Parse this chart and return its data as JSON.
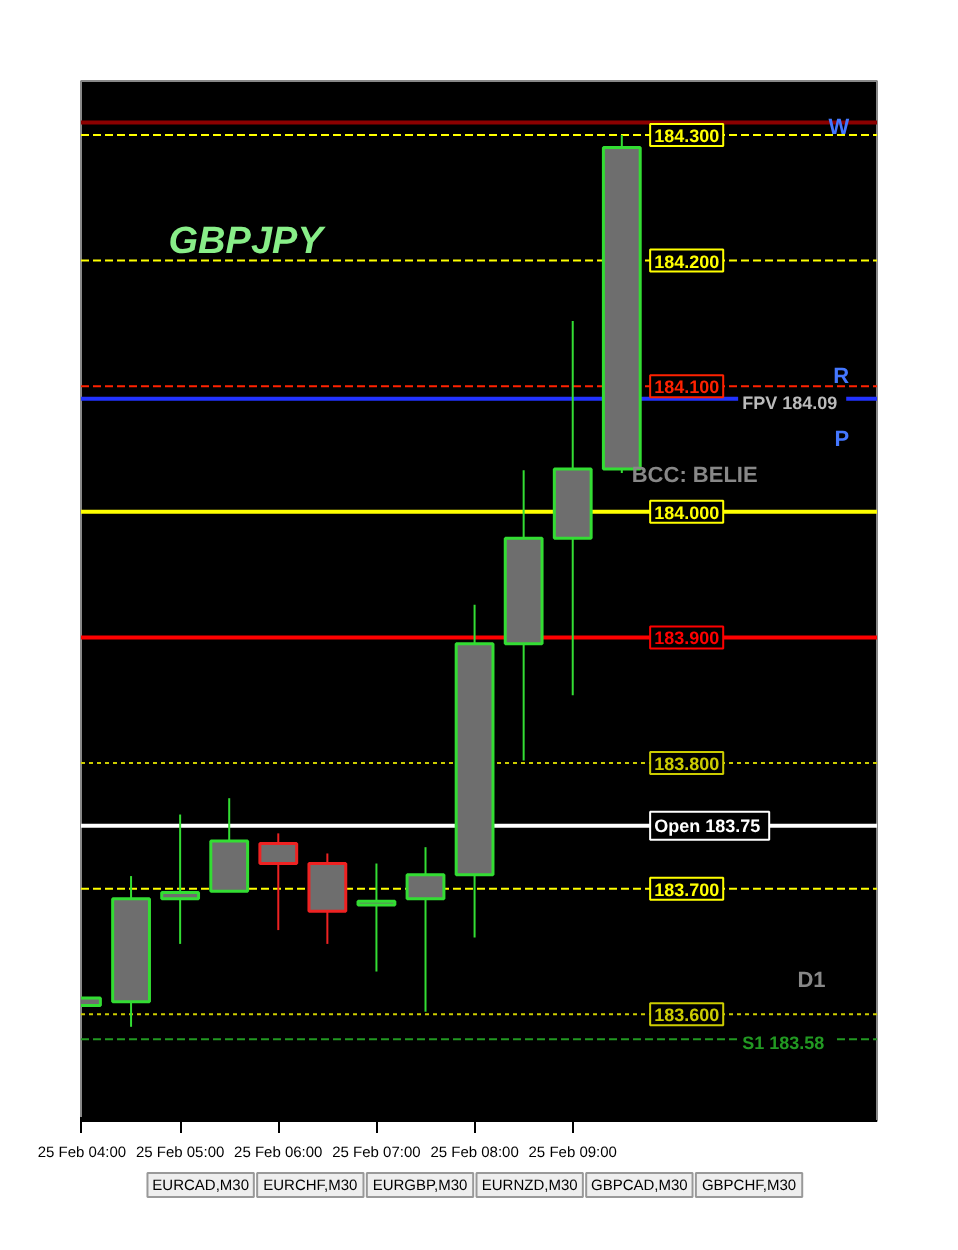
{
  "chart_data": {
    "type": "candlestick",
    "title": "GBPJPY",
    "categories": [
      "25 Feb 04:00",
      null,
      "25 Feb 05:00",
      null,
      "25 Feb 06:00",
      null,
      "25 Feb 07:00",
      null,
      "25 Feb 08:00",
      null,
      "25 Feb 09:00",
      null
    ],
    "ohlc": [
      [
        183.607,
        183.613,
        183.607,
        183.613
      ],
      [
        183.61,
        183.71,
        183.59,
        183.692
      ],
      [
        183.692,
        183.759,
        183.656,
        183.697
      ],
      [
        183.698,
        183.772,
        183.698,
        183.738
      ],
      [
        183.736,
        183.744,
        183.667,
        183.72
      ],
      [
        183.72,
        183.728,
        183.656,
        183.682
      ],
      [
        183.687,
        183.72,
        183.634,
        183.69
      ],
      [
        183.692,
        183.733,
        183.602,
        183.711
      ],
      [
        183.711,
        183.926,
        183.661,
        183.895
      ],
      [
        183.895,
        184.033,
        183.802,
        183.979
      ],
      [
        183.979,
        184.152,
        183.854,
        184.034
      ],
      [
        184.034,
        184.3,
        184.031,
        184.29
      ]
    ],
    "colors": [
      "#33dd33",
      "#33dd33",
      "#33dd33",
      "#33dd33",
      "#ee2222",
      "#ee2222",
      "#33dd33",
      "#33dd33",
      "#33dd33",
      "#33dd33",
      "#33dd33",
      "#33dd33"
    ],
    "ylim": [
      183.515,
      184.343
    ],
    "tick_labels": "x",
    "grid": false,
    "ref_lines": [
      {
        "axis": "y",
        "value": 184.31,
        "color": "#8b0000",
        "line_style": "solid"
      },
      {
        "axis": "y",
        "value": 184.3,
        "label": "184.300",
        "color": "#ffff00",
        "line_style": "dashed"
      },
      {
        "axis": "y",
        "value": 184.2,
        "label": "184.200",
        "color": "#ffff00",
        "line_style": "dashed"
      },
      {
        "axis": "y",
        "value": 184.1,
        "label": "184.100",
        "color": "#ff2200",
        "line_style": "dashed"
      },
      {
        "axis": "y",
        "value": 184.09,
        "label": "FPV  184.09",
        "color": "#2233ff",
        "line_style": "solid"
      },
      {
        "axis": "y",
        "value": 184.0,
        "label": "184.000",
        "color": "#ffff00",
        "line_style": "solid"
      },
      {
        "axis": "y",
        "value": 183.9,
        "label": "183.900",
        "color": "#ff0000",
        "line_style": "solid"
      },
      {
        "axis": "y",
        "value": 183.8,
        "label": "183.800",
        "color": "#cccc00",
        "line_style": "dotted"
      },
      {
        "axis": "y",
        "value": 183.75,
        "label": "Open  183.75",
        "color": "#ffffff",
        "line_style": "solid"
      },
      {
        "axis": "y",
        "value": 183.7,
        "label": "183.700",
        "color": "#ffff00",
        "line_style": "dashed"
      },
      {
        "axis": "y",
        "value": 183.6,
        "label": "183.600",
        "color": "#cccc00",
        "line_style": "dotted"
      },
      {
        "axis": "y",
        "value": 183.58,
        "label": "S1  183.58",
        "color": "#229922",
        "line_style": "dashed"
      }
    ],
    "annotations": [
      "W",
      "R",
      "P",
      "BCC: BELIE",
      "D1",
      "EURCAD,M30",
      "EURCHF,M30",
      "EURGBP,M30",
      "EURNZD,M30",
      "GBPCAD,M30",
      "GBPCHF,M30"
    ]
  }
}
